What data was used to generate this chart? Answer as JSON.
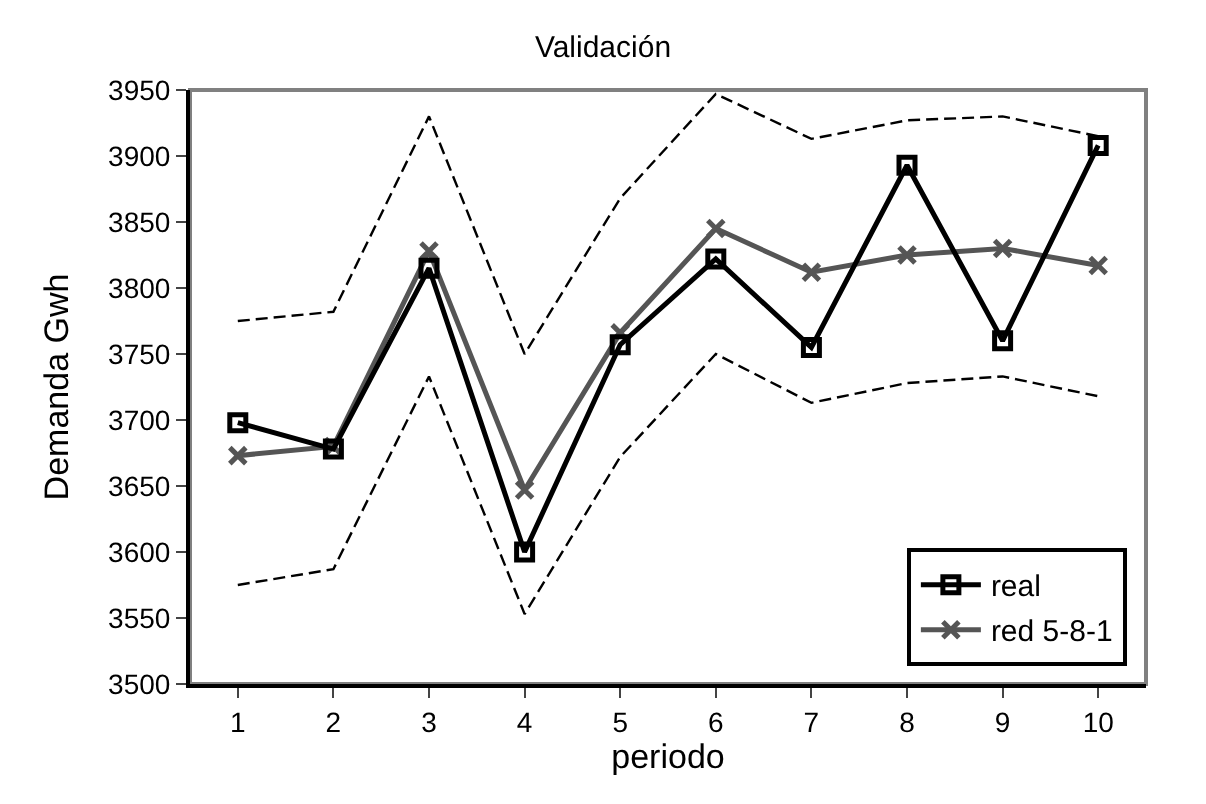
{
  "chart_data": {
    "type": "line",
    "title": "Validación",
    "xlabel": "periodo",
    "ylabel": "Demanda Gwh",
    "categories": [
      "1",
      "2",
      "3",
      "4",
      "5",
      "6",
      "7",
      "8",
      "9",
      "10"
    ],
    "ylim": [
      3500,
      3950
    ],
    "yticks": [
      3500,
      3550,
      3600,
      3650,
      3700,
      3750,
      3800,
      3850,
      3900,
      3950
    ],
    "grid": false,
    "legend": "bottom right",
    "series": [
      {
        "name": "real",
        "color": "#000000",
        "marker": "square",
        "line_style": "solid",
        "values": [
          3698,
          3678,
          3815,
          3600,
          3757,
          3822,
          3755,
          3893,
          3760,
          3908
        ]
      },
      {
        "name": "red 5-8-1",
        "color": "#555555",
        "marker": "cross",
        "line_style": "solid",
        "values": [
          3673,
          3680,
          3828,
          3647,
          3766,
          3845,
          3812,
          3825,
          3830,
          3817
        ]
      },
      {
        "color": "#000000",
        "marker": "none",
        "line_style": "dashed",
        "values": [
          3775,
          3782,
          3930,
          3750,
          3868,
          3947,
          3913,
          3927,
          3930,
          3915
        ]
      },
      {
        "color": "#000000",
        "marker": "none",
        "line_style": "dashed",
        "values": [
          3575,
          3587,
          3733,
          3553,
          3672,
          3750,
          3713,
          3728,
          3733,
          3718
        ]
      }
    ]
  }
}
